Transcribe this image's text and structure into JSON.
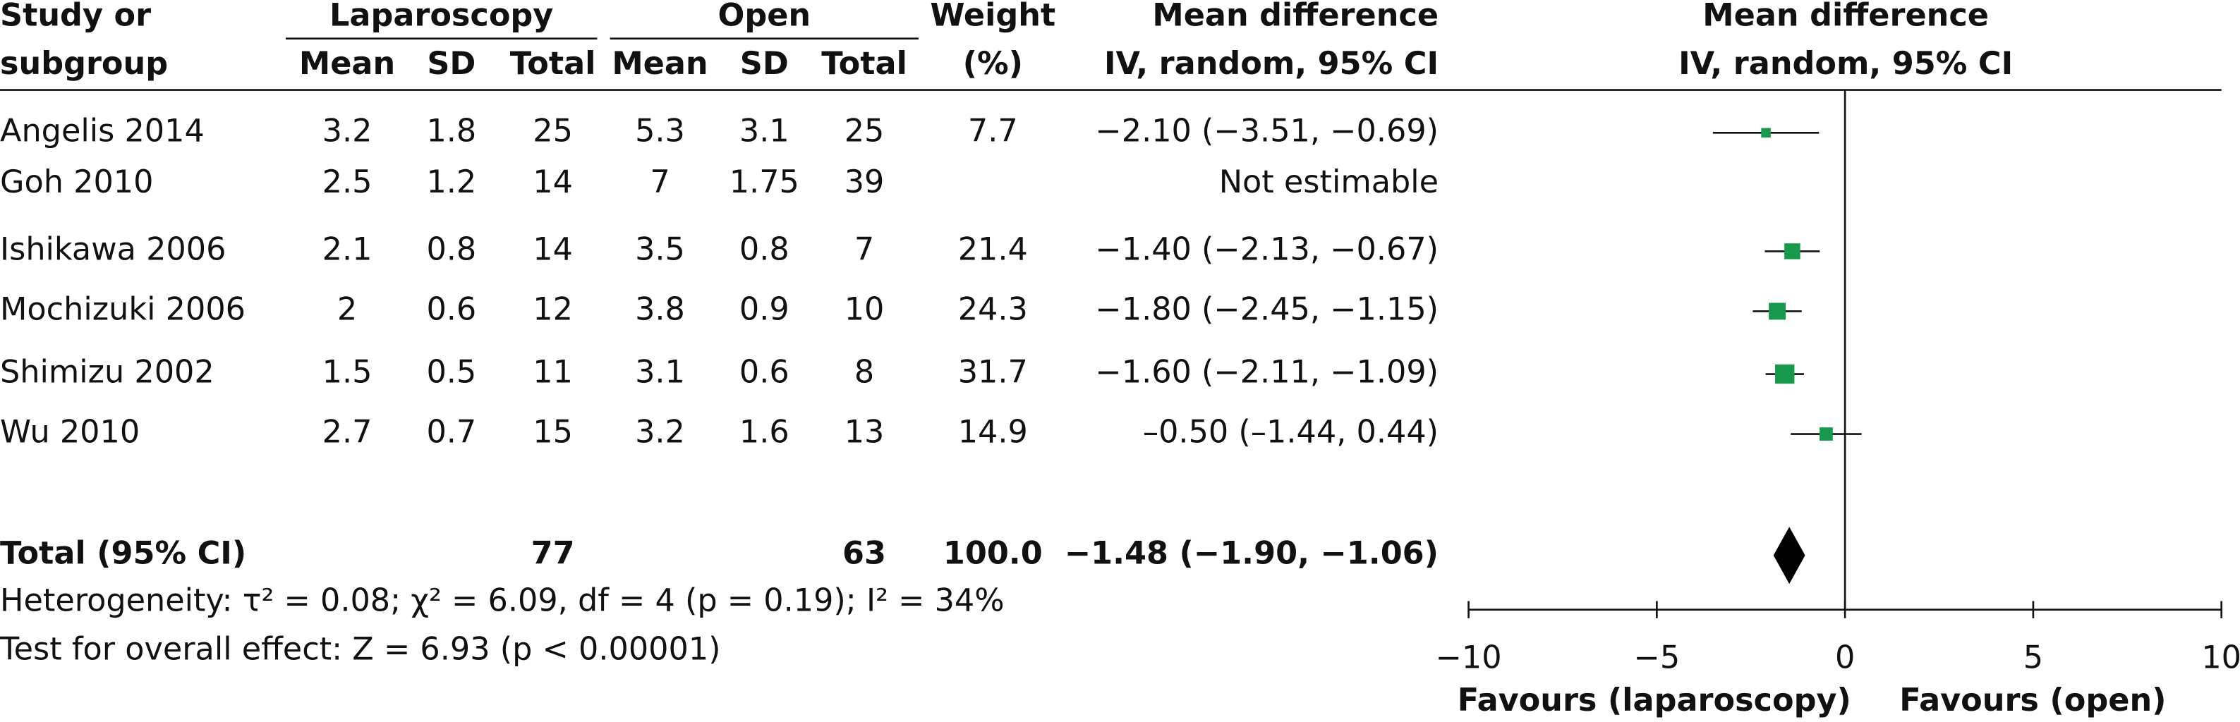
{
  "chart_data": {
    "type": "forest",
    "headers": {
      "study_1": "Study or",
      "study_2": "subgroup",
      "group_1": "Laparoscopy",
      "group_2": "Open",
      "mean": "Mean",
      "sd": "SD",
      "total": "Total",
      "weight_1": "Weight",
      "weight_2": "(%)",
      "md_1": "Mean difference",
      "md_2": "IV, random, 95% CI",
      "plot_1": "Mean difference",
      "plot_2": "IV, random, 95% CI"
    },
    "marker_color": "#16994a",
    "studies": [
      {
        "name": "Angelis 2014",
        "lap_mean": 3.2,
        "lap_sd": 1.8,
        "lap_total": 25,
        "open_mean": 5.3,
        "open_sd": 3.1,
        "open_total": 25,
        "weight": 7.7,
        "md": -2.1,
        "ci_low": -3.51,
        "ci_high": -0.69,
        "md_label": "−2.10 (−3.51, −0.69)"
      },
      {
        "name": "Goh 2010",
        "lap_mean": 2.5,
        "lap_sd": 1.2,
        "lap_total": 14,
        "open_mean": 7,
        "open_sd": 1.75,
        "open_total": 39,
        "weight": null,
        "md": null,
        "ci_low": null,
        "ci_high": null,
        "md_label": "Not estimable"
      },
      {
        "name": "Ishikawa 2006",
        "lap_mean": 2.1,
        "lap_sd": 0.8,
        "lap_total": 14,
        "open_mean": 3.5,
        "open_sd": 0.8,
        "open_total": 7,
        "weight": 21.4,
        "md": -1.4,
        "ci_low": -2.13,
        "ci_high": -0.67,
        "md_label": "−1.40 (−2.13, −0.67)"
      },
      {
        "name": "Mochizuki 2006",
        "lap_mean": 2,
        "lap_sd": 0.6,
        "lap_total": 12,
        "open_mean": 3.8,
        "open_sd": 0.9,
        "open_total": 10,
        "weight": 24.3,
        "md": -1.8,
        "ci_low": -2.45,
        "ci_high": -1.15,
        "md_label": "−1.80 (−2.45, −1.15)"
      },
      {
        "name": "Shimizu 2002",
        "lap_mean": 1.5,
        "lap_sd": 0.5,
        "lap_total": 11,
        "open_mean": 3.1,
        "open_sd": 0.6,
        "open_total": 8,
        "weight": 31.7,
        "md": -1.6,
        "ci_low": -2.11,
        "ci_high": -1.09,
        "md_label": "−1.60 (−2.11, −1.09)"
      },
      {
        "name": "Wu 2010",
        "lap_mean": 2.7,
        "lap_sd": 0.7,
        "lap_total": 15,
        "open_mean": 3.2,
        "open_sd": 1.6,
        "open_total": 13,
        "weight": 14.9,
        "md": -0.5,
        "ci_low": -1.44,
        "ci_high": 0.44,
        "md_label": "–0.50 (–1.44, 0.44)"
      }
    ],
    "total": {
      "name": "Total (95% CI)",
      "lap_total": 77,
      "open_total": 63,
      "weight": 100,
      "weight_label": "100.0",
      "md": -1.48,
      "ci_low": -1.9,
      "ci_high": -1.06,
      "md_label": "−1.48 (−1.90, −1.06)"
    },
    "heterogeneity": "Heterogeneity: τ² = 0.08; χ² = 6.09, df = 4 (p = 0.19); I² = 34%",
    "overall_effect": "Test for overall effect: Z = 6.93 (p < 0.00001)",
    "xlim": [
      -10,
      10
    ],
    "xticks": [
      {
        "value": -10,
        "label": "−10"
      },
      {
        "value": -5,
        "label": "−5"
      },
      0,
      5,
      10
    ],
    "favours_left": "Favours (laparoscopy)",
    "favours_right": "Favours (open)"
  }
}
